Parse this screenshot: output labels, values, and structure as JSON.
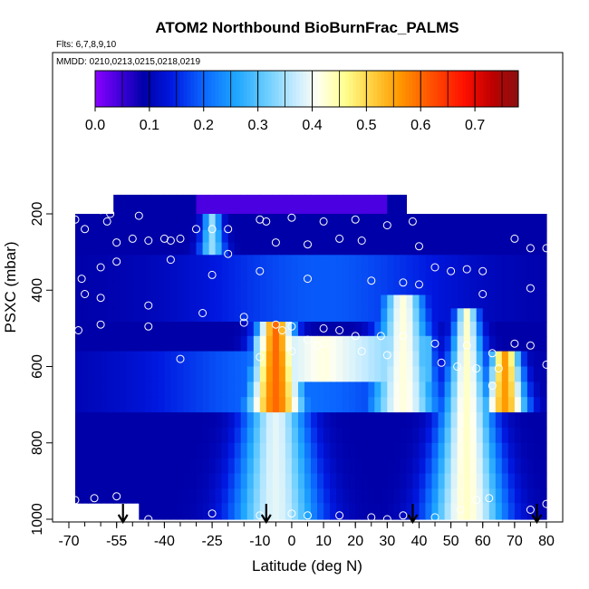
{
  "chart_data": {
    "type": "heatmap",
    "title": "ATOM2 Northbound BioBurnFrac_PALMS",
    "subtitle_flights": "Flts: 6,7,8,9,10",
    "subtitle_dates": "MMDD: 0210,0213,0215,0218,0219",
    "xlabel": "Latitude (deg N)",
    "ylabel": "PSXC (mbar)",
    "x_ticks": [
      "-70",
      "-55",
      "-40",
      "-25",
      "-10",
      "0",
      "10",
      "20",
      "30",
      "40",
      "50",
      "60",
      "70",
      "80"
    ],
    "y_ticks": [
      "200",
      "400",
      "600",
      "800",
      "1000"
    ],
    "colorbar": {
      "ticks": [
        "0.0",
        "0.1",
        "0.2",
        "0.3",
        "0.4",
        "0.5",
        "0.6",
        "0.7"
      ],
      "range": [
        0,
        0.78
      ],
      "stops": [
        [
          0.0,
          "#8a00ff"
        ],
        [
          0.05,
          "#3a00d8"
        ],
        [
          0.09,
          "#0000a8"
        ],
        [
          0.14,
          "#0018e0"
        ],
        [
          0.2,
          "#0a66ff"
        ],
        [
          0.26,
          "#1fa6ff"
        ],
        [
          0.32,
          "#70d0ff"
        ],
        [
          0.37,
          "#c8ecff"
        ],
        [
          0.41,
          "#fffff0"
        ],
        [
          0.46,
          "#ffff90"
        ],
        [
          0.51,
          "#ffd040"
        ],
        [
          0.56,
          "#ff9a00"
        ],
        [
          0.62,
          "#ff5000"
        ],
        [
          0.68,
          "#ff1000"
        ],
        [
          0.73,
          "#c00000"
        ],
        [
          0.78,
          "#8b1010"
        ]
      ]
    },
    "xlim": [
      -70,
      83
    ],
    "ylim": [
      1000,
      100
    ],
    "pressure_levels": [
      175,
      225,
      260,
      290,
      325,
      360,
      395,
      430,
      465,
      500,
      540,
      580,
      620,
      660,
      700,
      740,
      780,
      820,
      860,
      900,
      940,
      975
    ],
    "features": {
      "background": 0.09,
      "plumes": [
        {
          "lat": -25,
          "pmin": 210,
          "pmax": 300,
          "peak": 0.34,
          "width": 2.5
        },
        {
          "lat": -5,
          "pmin": 480,
          "pmax": 1000,
          "peak": 0.6,
          "width": 5
        },
        {
          "lat": 35,
          "pmin": 420,
          "pmax": 700,
          "peak": 0.42,
          "width": 6
        },
        {
          "lat": 55,
          "pmin": 440,
          "pmax": 1000,
          "peak": 0.43,
          "width": 3
        },
        {
          "lat": 67,
          "pmin": 560,
          "pmax": 700,
          "peak": 0.56,
          "width": 4
        }
      ]
    },
    "flight_points": [
      [
        -60,
        190
      ],
      [
        -57,
        200
      ],
      [
        -48,
        205
      ],
      [
        -68,
        215
      ],
      [
        -58,
        220
      ],
      [
        -65,
        240
      ],
      [
        -25,
        240
      ],
      [
        -30,
        240
      ],
      [
        -20,
        240
      ],
      [
        -40,
        265
      ],
      [
        -45,
        270
      ],
      [
        -50,
        265
      ],
      [
        -55,
        275
      ],
      [
        -35,
        265
      ],
      [
        -38,
        270
      ],
      [
        -10,
        215
      ],
      [
        -8,
        220
      ],
      [
        0,
        210
      ],
      [
        10,
        220
      ],
      [
        20,
        215
      ],
      [
        30,
        230
      ],
      [
        38,
        220
      ],
      [
        -5,
        275
      ],
      [
        5,
        280
      ],
      [
        15,
        265
      ],
      [
        22,
        270
      ],
      [
        40,
        285
      ],
      [
        45,
        340
      ],
      [
        50,
        350
      ],
      [
        55,
        345
      ],
      [
        60,
        350
      ],
      [
        70,
        265
      ],
      [
        75,
        290
      ],
      [
        80,
        290
      ],
      [
        -20,
        305
      ],
      [
        -55,
        325
      ],
      [
        -60,
        340
      ],
      [
        -66,
        370
      ],
      [
        -70,
        360
      ],
      [
        -38,
        320
      ],
      [
        -25,
        360
      ],
      [
        -10,
        350
      ],
      [
        5,
        370
      ],
      [
        25,
        375
      ],
      [
        35,
        380
      ],
      [
        40,
        385
      ],
      [
        60,
        410
      ],
      [
        75,
        395
      ],
      [
        -65,
        410
      ],
      [
        -60,
        420
      ],
      [
        -45,
        440
      ],
      [
        -28,
        460
      ],
      [
        -15,
        470
      ],
      [
        -5,
        490
      ],
      [
        0,
        495
      ],
      [
        10,
        500
      ],
      [
        15,
        505
      ],
      [
        20,
        520
      ],
      [
        28,
        520
      ],
      [
        35,
        520
      ],
      [
        45,
        540
      ],
      [
        55,
        545
      ],
      [
        63,
        565
      ],
      [
        70,
        540
      ],
      [
        75,
        545
      ],
      [
        -67,
        505
      ],
      [
        -60,
        490
      ],
      [
        -45,
        495
      ],
      [
        -15,
        485
      ],
      [
        -3,
        505
      ],
      [
        5,
        530
      ],
      [
        10,
        540
      ],
      [
        22,
        560
      ],
      [
        30,
        570
      ],
      [
        -35,
        580
      ],
      [
        -10,
        575
      ],
      [
        0,
        560
      ],
      [
        8,
        545
      ],
      [
        47,
        590
      ],
      [
        52,
        600
      ],
      [
        58,
        605
      ],
      [
        65,
        605
      ],
      [
        80,
        595
      ],
      [
        63,
        650
      ],
      [
        -55,
        940
      ],
      [
        -62,
        945
      ],
      [
        -68,
        950
      ],
      [
        -60,
        1000
      ],
      [
        -45,
        1000
      ],
      [
        -25,
        985
      ],
      [
        -10,
        990
      ],
      [
        0,
        985
      ],
      [
        5,
        990
      ],
      [
        15,
        990
      ],
      [
        25,
        995
      ],
      [
        30,
        1000
      ],
      [
        35,
        990
      ],
      [
        45,
        995
      ],
      [
        53,
        975
      ],
      [
        58,
        950
      ],
      [
        62,
        945
      ],
      [
        75,
        975
      ],
      [
        80,
        960
      ]
    ],
    "arrows_lat": [
      -53,
      -8,
      38,
      77
    ]
  }
}
